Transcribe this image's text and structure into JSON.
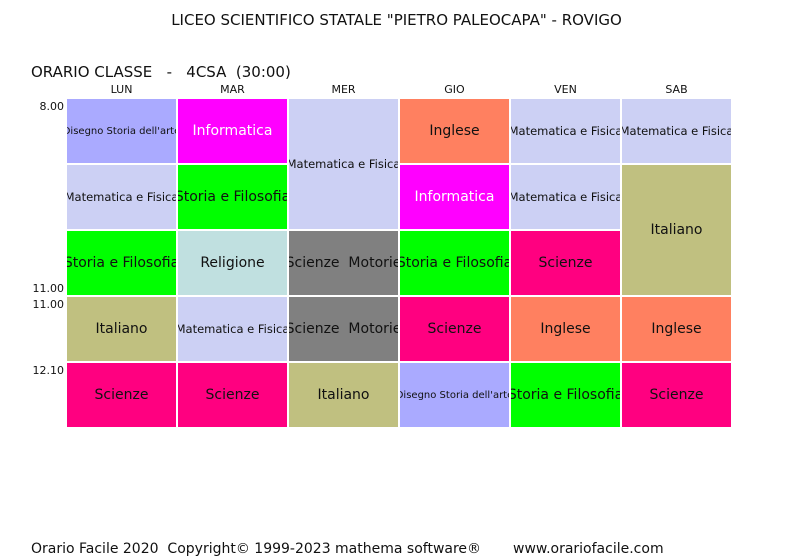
{
  "header": {
    "title": "LICEO SCIENTIFICO STATALE \"PIETRO PALEOCAPA\" - ROVIGO",
    "class_label": "ORARIO CLASSE   -   4CSA  (30:00)"
  },
  "times": [
    "8.00",
    "11.00",
    "11.00",
    "12.10"
  ],
  "table": {
    "columns": [
      {
        "day": "LUN",
        "cells": [
          {
            "label": "Disegno Storia dell'arte",
            "color": "#aaaaff"
          },
          {
            "label": "Matematica e Fisica",
            "color": "#ccd0f4"
          },
          {
            "label": "Storia e Filosofia",
            "color": "#00ff00"
          },
          {
            "label": "Italiano",
            "color": "#c0c080"
          },
          {
            "label": "Scienze",
            "color": "#ff0080"
          }
        ]
      },
      {
        "day": "MAR",
        "cells": [
          {
            "label": "Informatica",
            "color": "#ff00ff",
            "text_color": "#ffffff"
          },
          {
            "label": "Storia e Filosofia",
            "color": "#00ff00"
          },
          {
            "label": "Religione",
            "color": "#c0e0e0"
          },
          {
            "label": "Matematica e Fisica",
            "color": "#ccd0f4"
          },
          {
            "label": "Scienze",
            "color": "#ff0080"
          }
        ]
      },
      {
        "day": "MER",
        "cells": [
          {
            "label": "Matematica e Fisica",
            "color": "#ccd0f4",
            "hours": 2
          },
          {
            "label": "Scienze  Motorie",
            "color": "#808080"
          },
          {
            "label": "Scienze  Motorie",
            "color": "#808080"
          },
          {
            "label": "Italiano",
            "color": "#c0c080"
          }
        ]
      },
      {
        "day": "GIO",
        "cells": [
          {
            "label": "Inglese",
            "color": "#ff8060"
          },
          {
            "label": "Informatica",
            "color": "#ff00ff",
            "text_color": "#ffffff"
          },
          {
            "label": "Storia e Filosofia",
            "color": "#00ff00"
          },
          {
            "label": "Scienze",
            "color": "#ff0080"
          },
          {
            "label": "Disegno Storia dell'arte",
            "color": "#aaaaff"
          }
        ]
      },
      {
        "day": "VEN",
        "cells": [
          {
            "label": "Matematica e Fisica",
            "color": "#ccd0f4"
          },
          {
            "label": "Matematica e Fisica",
            "color": "#ccd0f4"
          },
          {
            "label": "Scienze",
            "color": "#ff0080"
          },
          {
            "label": "Inglese",
            "color": "#ff8060"
          },
          {
            "label": "Storia e Filosofia",
            "color": "#00ff00"
          }
        ]
      },
      {
        "day": "SAB",
        "cells": [
          {
            "label": "Matematica e Fisica",
            "color": "#ccd0f4"
          },
          {
            "label": "Italiano",
            "color": "#c0c080",
            "hours": 2
          },
          {
            "label": "Inglese",
            "color": "#ff8060"
          },
          {
            "label": "Scienze",
            "color": "#ff0080"
          }
        ]
      }
    ]
  },
  "footer": {
    "copyright": "Orario Facile 2020  Copyright© 1999-2023 mathema software®",
    "url": "www.orariofacile.com"
  }
}
